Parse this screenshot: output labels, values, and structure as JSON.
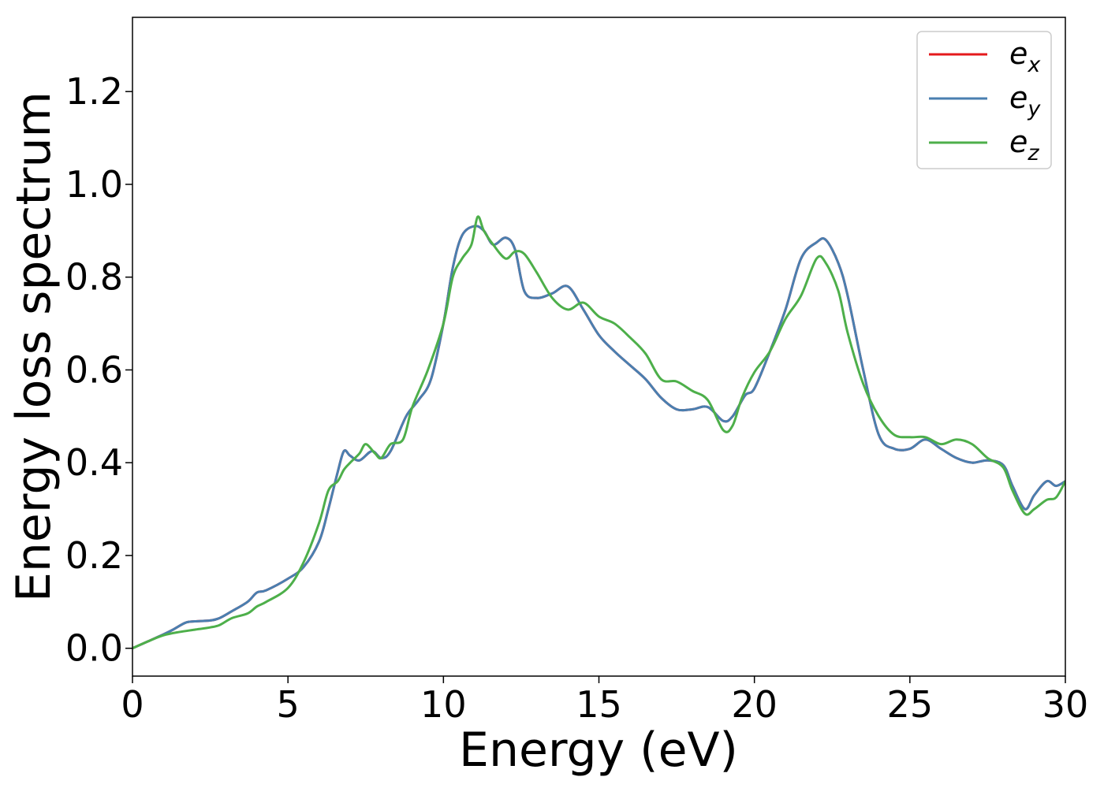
{
  "chart_data": {
    "type": "line",
    "title": "",
    "xlabel": "Energy (eV)",
    "ylabel": "Energy loss spectrum",
    "xlim": [
      0,
      30
    ],
    "ylim": [
      -0.06,
      1.36
    ],
    "xticks": [
      0,
      5,
      10,
      15,
      20,
      25,
      30
    ],
    "xtick_labels": [
      "0",
      "5",
      "10",
      "15",
      "20",
      "25",
      "30"
    ],
    "yticks": [
      0.0,
      0.2,
      0.4,
      0.6,
      0.8,
      1.0,
      1.2
    ],
    "ytick_labels": [
      "0.0",
      "0.2",
      "0.4",
      "0.6",
      "0.8",
      "1.0",
      "1.2"
    ],
    "grid": false,
    "legend_position": "top-right",
    "series": [
      {
        "name": "e",
        "subscript": "x",
        "color": "#e41a1c",
        "x": [
          0,
          0.5,
          1,
          1.3,
          1.7,
          2,
          2.5,
          2.8,
          3.2,
          3.7,
          4,
          4.3,
          5,
          5.5,
          6,
          6.3,
          6.6,
          6.8,
          7,
          7.3,
          7.7,
          8,
          8.3,
          8.8,
          9.2,
          9.6,
          10,
          10.3,
          10.6,
          11,
          11.3,
          11.6,
          12,
          12.3,
          12.6,
          13,
          13.5,
          14,
          14.5,
          15,
          15.5,
          16,
          16.5,
          17,
          17.5,
          18,
          18.5,
          19,
          19.3,
          19.7,
          20,
          20.5,
          21,
          21.5,
          22,
          22.3,
          22.7,
          23,
          23.5,
          24,
          24.5,
          25,
          25.5,
          26,
          26.5,
          27,
          27.5,
          28,
          28.3,
          28.7,
          29,
          29.4,
          29.7,
          30
        ],
        "values": [
          0,
          0.015,
          0.03,
          0.04,
          0.055,
          0.058,
          0.06,
          0.065,
          0.08,
          0.1,
          0.12,
          0.125,
          0.15,
          0.175,
          0.23,
          0.3,
          0.38,
          0.425,
          0.415,
          0.405,
          0.425,
          0.41,
          0.425,
          0.5,
          0.535,
          0.58,
          0.7,
          0.82,
          0.89,
          0.91,
          0.9,
          0.87,
          0.885,
          0.86,
          0.77,
          0.755,
          0.765,
          0.78,
          0.73,
          0.675,
          0.64,
          0.61,
          0.58,
          0.54,
          0.515,
          0.515,
          0.52,
          0.49,
          0.5,
          0.545,
          0.56,
          0.64,
          0.73,
          0.84,
          0.875,
          0.88,
          0.83,
          0.76,
          0.6,
          0.46,
          0.43,
          0.43,
          0.45,
          0.43,
          0.41,
          0.4,
          0.405,
          0.395,
          0.35,
          0.3,
          0.33,
          0.36,
          0.35,
          0.36
        ]
      },
      {
        "name": "e",
        "subscript": "y",
        "color": "#4a7fb0",
        "x": [
          0,
          0.5,
          1,
          1.3,
          1.7,
          2,
          2.5,
          2.8,
          3.2,
          3.7,
          4,
          4.3,
          5,
          5.5,
          6,
          6.3,
          6.6,
          6.8,
          7,
          7.3,
          7.7,
          8,
          8.3,
          8.8,
          9.2,
          9.6,
          10,
          10.3,
          10.6,
          11,
          11.3,
          11.6,
          12,
          12.3,
          12.6,
          13,
          13.5,
          14,
          14.5,
          15,
          15.5,
          16,
          16.5,
          17,
          17.5,
          18,
          18.5,
          19,
          19.3,
          19.7,
          20,
          20.5,
          21,
          21.5,
          22,
          22.3,
          22.7,
          23,
          23.5,
          24,
          24.5,
          25,
          25.5,
          26,
          26.5,
          27,
          27.5,
          28,
          28.3,
          28.7,
          29,
          29.4,
          29.7,
          30
        ],
        "values": [
          0,
          0.015,
          0.03,
          0.04,
          0.055,
          0.058,
          0.06,
          0.065,
          0.08,
          0.1,
          0.12,
          0.125,
          0.15,
          0.175,
          0.23,
          0.3,
          0.38,
          0.425,
          0.415,
          0.405,
          0.425,
          0.41,
          0.425,
          0.5,
          0.535,
          0.58,
          0.7,
          0.82,
          0.89,
          0.91,
          0.9,
          0.87,
          0.885,
          0.86,
          0.77,
          0.755,
          0.765,
          0.78,
          0.73,
          0.675,
          0.64,
          0.61,
          0.58,
          0.54,
          0.515,
          0.515,
          0.52,
          0.49,
          0.5,
          0.545,
          0.56,
          0.64,
          0.73,
          0.84,
          0.875,
          0.88,
          0.83,
          0.76,
          0.6,
          0.46,
          0.43,
          0.43,
          0.45,
          0.43,
          0.41,
          0.4,
          0.405,
          0.395,
          0.35,
          0.3,
          0.33,
          0.36,
          0.35,
          0.36
        ]
      },
      {
        "name": "e",
        "subscript": "z",
        "color": "#4daf4a",
        "x": [
          0,
          0.5,
          1,
          1.5,
          2,
          2.5,
          2.8,
          3.2,
          3.7,
          4,
          4.3,
          5,
          5.5,
          6,
          6.3,
          6.6,
          6.8,
          7,
          7.3,
          7.5,
          7.8,
          8,
          8.3,
          8.7,
          9,
          9.5,
          10,
          10.3,
          10.6,
          10.9,
          11.1,
          11.3,
          11.6,
          12,
          12.3,
          12.6,
          13,
          13.5,
          14,
          14.5,
          15,
          15.5,
          16,
          16.5,
          17,
          17.5,
          18,
          18.5,
          19,
          19.3,
          19.6,
          20,
          20.5,
          21,
          21.5,
          22,
          22.3,
          22.7,
          23,
          23.5,
          24,
          24.5,
          25,
          25.5,
          26,
          26.5,
          27,
          27.5,
          28,
          28.3,
          28.7,
          29,
          29.4,
          29.7,
          30
        ],
        "values": [
          0,
          0.015,
          0.028,
          0.035,
          0.04,
          0.045,
          0.05,
          0.065,
          0.075,
          0.09,
          0.1,
          0.13,
          0.185,
          0.27,
          0.34,
          0.36,
          0.385,
          0.4,
          0.42,
          0.44,
          0.42,
          0.41,
          0.44,
          0.45,
          0.52,
          0.6,
          0.7,
          0.8,
          0.84,
          0.87,
          0.93,
          0.9,
          0.87,
          0.84,
          0.855,
          0.85,
          0.81,
          0.755,
          0.73,
          0.745,
          0.715,
          0.7,
          0.67,
          0.635,
          0.58,
          0.575,
          0.555,
          0.535,
          0.47,
          0.48,
          0.54,
          0.595,
          0.64,
          0.71,
          0.76,
          0.84,
          0.83,
          0.77,
          0.68,
          0.57,
          0.5,
          0.46,
          0.455,
          0.455,
          0.44,
          0.45,
          0.44,
          0.41,
          0.39,
          0.34,
          0.29,
          0.3,
          0.32,
          0.325,
          0.36
        ]
      }
    ]
  }
}
